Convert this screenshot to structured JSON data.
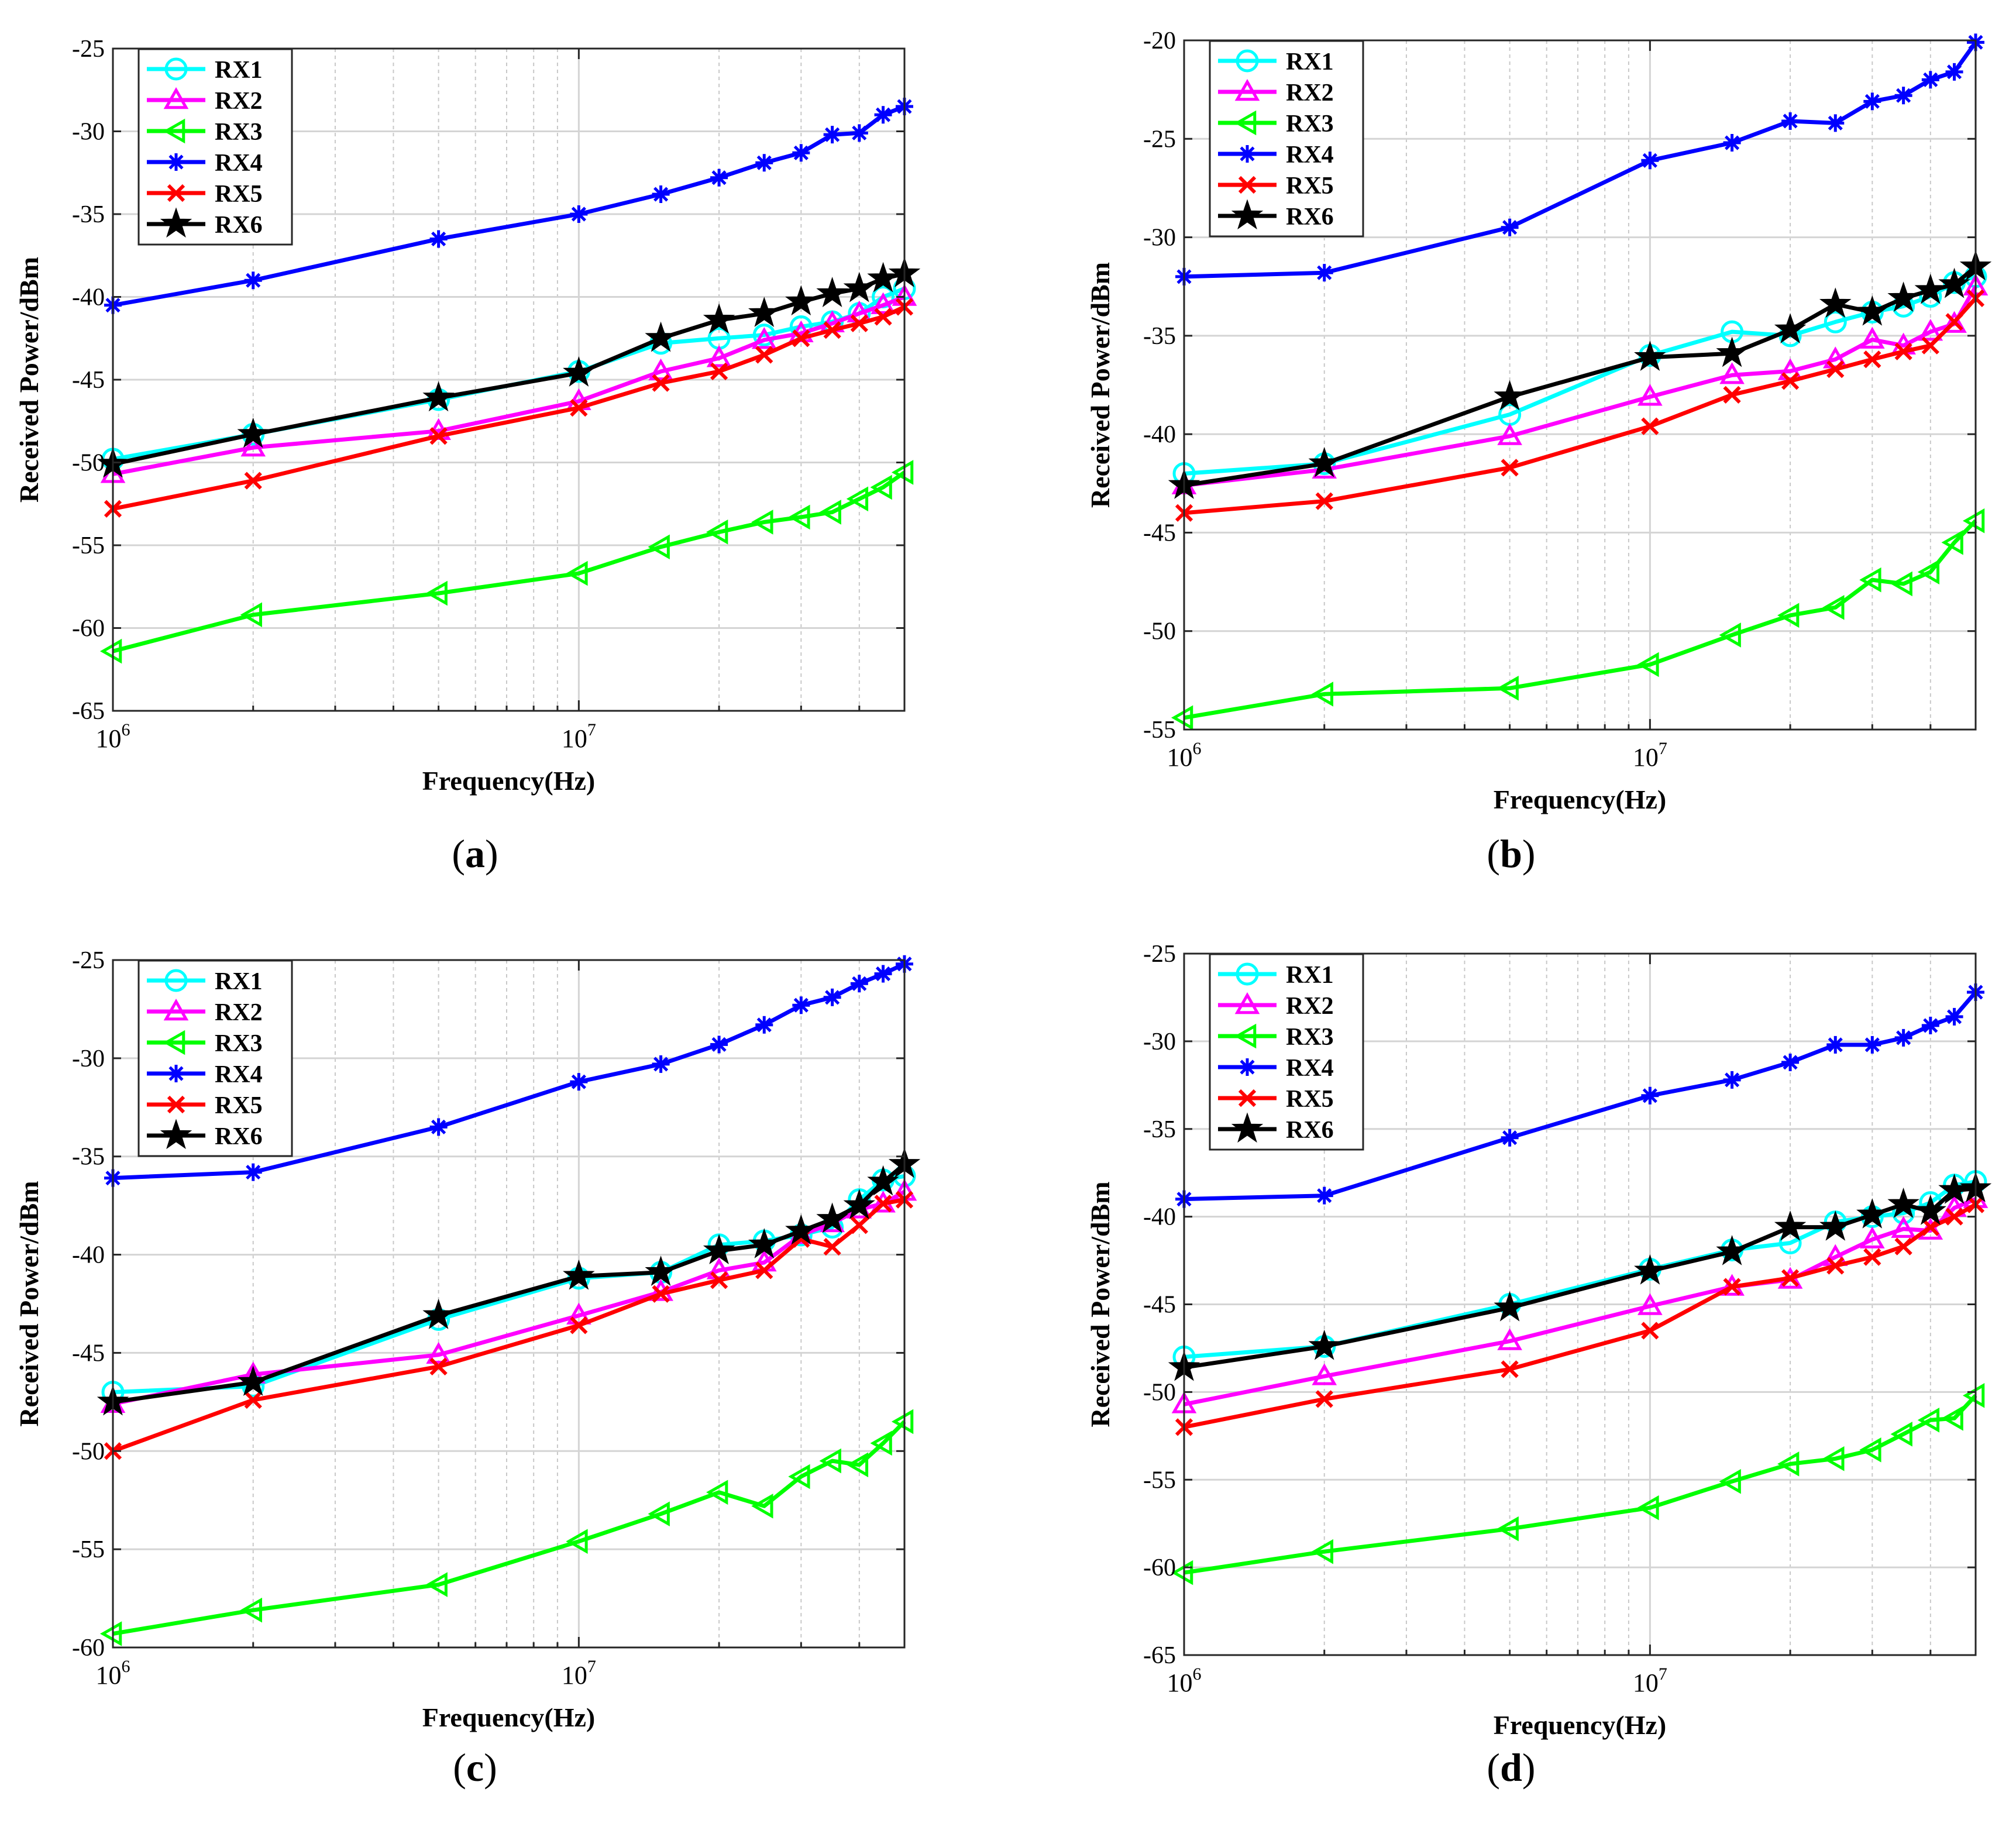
{
  "figure": {
    "panel_labels": [
      "a",
      "b",
      "c",
      "d"
    ]
  },
  "series_styles": {
    "RX1": {
      "color": "#00ffff",
      "marker": "circle"
    },
    "RX2": {
      "color": "#ff00ff",
      "marker": "triangle-up"
    },
    "RX3": {
      "color": "#00ff00",
      "marker": "triangle-left"
    },
    "RX4": {
      "color": "#0000ff",
      "marker": "asterisk"
    },
    "RX5": {
      "color": "#ff0000",
      "marker": "x"
    },
    "RX6": {
      "color": "#000000",
      "marker": "star"
    }
  },
  "chart_data": [
    {
      "type": "line",
      "panel": "a",
      "xscale": "log",
      "xlim": [
        1000000,
        50000000
      ],
      "ylim": [
        -65,
        -25
      ],
      "yticks": [
        -25,
        -30,
        -35,
        -40,
        -45,
        -50,
        -55,
        -60,
        -65
      ],
      "xticks": [
        {
          "value": 1000000,
          "base": "10",
          "exp": "6"
        },
        {
          "value": 10000000,
          "base": "10",
          "exp": "7"
        }
      ],
      "xlabel": "Frequency(Hz)",
      "ylabel": "Received Power/dBm",
      "legend_position": "top-left",
      "x": [
        1000000,
        2000000,
        5000000,
        10000000,
        15000000,
        20000000,
        25000000,
        30000000,
        35000000,
        40000000,
        45000000,
        50000000
      ],
      "series": [
        {
          "name": "RX1",
          "values": [
            -49.8,
            -48.3,
            -46.2,
            -44.5,
            -42.8,
            -42.5,
            -42.3,
            -41.8,
            -41.5,
            -41.0,
            -40.0,
            -39.5
          ]
        },
        {
          "name": "RX2",
          "values": [
            -50.7,
            -49.1,
            -48.1,
            -46.3,
            -44.5,
            -43.7,
            -42.6,
            -42.2,
            -41.6,
            -41.0,
            -40.5,
            -40.0
          ]
        },
        {
          "name": "RX3",
          "values": [
            -61.4,
            -59.2,
            -57.9,
            -56.7,
            -55.1,
            -54.2,
            -53.6,
            -53.3,
            -53.0,
            -52.2,
            -51.5,
            -50.6
          ]
        },
        {
          "name": "RX4",
          "values": [
            -40.5,
            -39.0,
            -36.5,
            -35.0,
            -33.8,
            -32.8,
            -31.9,
            -31.3,
            -30.2,
            -30.1,
            -29.0,
            -28.5
          ]
        },
        {
          "name": "RX5",
          "values": [
            -52.8,
            -51.1,
            -48.4,
            -46.7,
            -45.2,
            -44.5,
            -43.5,
            -42.5,
            -42.0,
            -41.6,
            -41.2,
            -40.6
          ]
        },
        {
          "name": "RX6",
          "values": [
            -50.1,
            -48.3,
            -46.1,
            -44.6,
            -42.5,
            -41.4,
            -41.0,
            -40.3,
            -39.8,
            -39.5,
            -38.9,
            -38.6
          ]
        }
      ]
    },
    {
      "type": "line",
      "panel": "b",
      "xscale": "log",
      "xlim": [
        1000000,
        50000000
      ],
      "ylim": [
        -55,
        -20
      ],
      "yticks": [
        -20,
        -25,
        -30,
        -35,
        -40,
        -45,
        -50,
        -55
      ],
      "xticks": [
        {
          "value": 1000000,
          "base": "10",
          "exp": "6"
        },
        {
          "value": 10000000,
          "base": "10",
          "exp": "7"
        }
      ],
      "xlabel": "Frequency(Hz)",
      "ylabel": "Received Power/dBm",
      "legend_position": "top-left",
      "x": [
        1000000,
        2000000,
        5000000,
        10000000,
        15000000,
        20000000,
        25000000,
        30000000,
        35000000,
        40000000,
        45000000,
        50000000
      ],
      "series": [
        {
          "name": "RX1",
          "values": [
            -42.0,
            -41.5,
            -39.0,
            -36.0,
            -34.8,
            -35.0,
            -34.3,
            -33.8,
            -33.5,
            -33.0,
            -32.3,
            -32.0
          ]
        },
        {
          "name": "RX2",
          "values": [
            -42.6,
            -41.8,
            -40.1,
            -38.1,
            -37.0,
            -36.8,
            -36.2,
            -35.2,
            -35.5,
            -34.8,
            -34.4,
            -32.5
          ]
        },
        {
          "name": "RX3",
          "values": [
            -54.4,
            -53.2,
            -52.9,
            -51.7,
            -50.2,
            -49.2,
            -48.8,
            -47.4,
            -47.6,
            -47.0,
            -45.5,
            -44.4
          ]
        },
        {
          "name": "RX4",
          "values": [
            -32.0,
            -31.8,
            -29.5,
            -26.1,
            -25.2,
            -24.1,
            -24.2,
            -23.1,
            -22.8,
            -22.0,
            -21.6,
            -20.1
          ]
        },
        {
          "name": "RX5",
          "values": [
            -44.0,
            -43.4,
            -41.7,
            -39.6,
            -38.0,
            -37.3,
            -36.7,
            -36.2,
            -35.8,
            -35.5,
            -34.3,
            -33.1
          ]
        },
        {
          "name": "RX6",
          "values": [
            -42.6,
            -41.5,
            -38.1,
            -36.1,
            -35.9,
            -34.7,
            -33.4,
            -33.8,
            -33.1,
            -32.7,
            -32.4,
            -31.5
          ]
        }
      ]
    },
    {
      "type": "line",
      "panel": "c",
      "xscale": "log",
      "xlim": [
        1000000,
        50000000
      ],
      "ylim": [
        -60,
        -25
      ],
      "yticks": [
        -25,
        -30,
        -35,
        -40,
        -45,
        -50,
        -55,
        -60
      ],
      "xticks": [
        {
          "value": 1000000,
          "base": "10",
          "exp": "6"
        },
        {
          "value": 10000000,
          "base": "10",
          "exp": "7"
        }
      ],
      "xlabel": "Frequency(Hz)",
      "ylabel": "Received Power/dBm",
      "legend_position": "top-left",
      "x": [
        1000000,
        2000000,
        5000000,
        10000000,
        15000000,
        20000000,
        25000000,
        30000000,
        35000000,
        40000000,
        45000000,
        50000000
      ],
      "series": [
        {
          "name": "RX1",
          "values": [
            -47.0,
            -46.7,
            -43.3,
            -41.2,
            -40.9,
            -39.5,
            -39.3,
            -39.0,
            -38.6,
            -37.2,
            -36.2,
            -36.0
          ]
        },
        {
          "name": "RX2",
          "values": [
            -47.6,
            -46.1,
            -45.1,
            -43.1,
            -41.9,
            -40.8,
            -40.4,
            -39.0,
            -38.4,
            -37.7,
            -37.4,
            -36.8
          ]
        },
        {
          "name": "RX3",
          "values": [
            -59.3,
            -58.1,
            -56.8,
            -54.6,
            -53.2,
            -52.1,
            -52.8,
            -51.3,
            -50.5,
            -50.7,
            -49.6,
            -48.5
          ]
        },
        {
          "name": "RX4",
          "values": [
            -36.1,
            -35.8,
            -33.5,
            -31.2,
            -30.3,
            -29.3,
            -28.3,
            -27.3,
            -26.9,
            -26.2,
            -25.7,
            -25.2
          ]
        },
        {
          "name": "RX5",
          "values": [
            -50.0,
            -47.4,
            -45.7,
            -43.6,
            -42.0,
            -41.3,
            -40.8,
            -39.2,
            -39.6,
            -38.5,
            -37.4,
            -37.2
          ]
        },
        {
          "name": "RX6",
          "values": [
            -47.5,
            -46.5,
            -43.1,
            -41.1,
            -40.9,
            -39.8,
            -39.5,
            -38.8,
            -38.2,
            -37.5,
            -36.3,
            -35.4
          ]
        }
      ]
    },
    {
      "type": "line",
      "panel": "d",
      "xscale": "log",
      "xlim": [
        1000000,
        50000000
      ],
      "ylim": [
        -65,
        -25
      ],
      "yticks": [
        -25,
        -30,
        -35,
        -40,
        -45,
        -50,
        -55,
        -60,
        -65
      ],
      "xticks": [
        {
          "value": 1000000,
          "base": "10",
          "exp": "6"
        },
        {
          "value": 10000000,
          "base": "10",
          "exp": "7"
        }
      ],
      "xlabel": "Frequency(Hz)",
      "ylabel": "Received Power/dBm",
      "legend_position": "top-left",
      "x": [
        1000000,
        2000000,
        5000000,
        10000000,
        15000000,
        20000000,
        25000000,
        30000000,
        35000000,
        40000000,
        45000000,
        50000000
      ],
      "series": [
        {
          "name": "RX1",
          "values": [
            -48.0,
            -47.4,
            -45.0,
            -43.0,
            -41.9,
            -41.5,
            -40.3,
            -40.0,
            -39.8,
            -39.2,
            -38.2,
            -38.0
          ]
        },
        {
          "name": "RX2",
          "values": [
            -50.7,
            -49.1,
            -47.1,
            -45.1,
            -44.0,
            -43.6,
            -42.3,
            -41.3,
            -40.7,
            -40.8,
            -39.5,
            -39.0
          ]
        },
        {
          "name": "RX3",
          "values": [
            -60.3,
            -59.1,
            -57.8,
            -56.6,
            -55.1,
            -54.1,
            -53.8,
            -53.3,
            -52.4,
            -51.6,
            -51.5,
            -50.2
          ]
        },
        {
          "name": "RX4",
          "values": [
            -39.0,
            -38.8,
            -35.5,
            -33.1,
            -32.2,
            -31.2,
            -30.2,
            -30.2,
            -29.8,
            -29.1,
            -28.6,
            -27.2
          ]
        },
        {
          "name": "RX5",
          "values": [
            -52.0,
            -50.4,
            -48.7,
            -46.5,
            -44.0,
            -43.5,
            -42.8,
            -42.3,
            -41.7,
            -40.6,
            -40.0,
            -39.3
          ]
        },
        {
          "name": "RX6",
          "values": [
            -48.6,
            -47.4,
            -45.2,
            -43.1,
            -42.0,
            -40.6,
            -40.6,
            -39.9,
            -39.3,
            -39.7,
            -38.5,
            -38.4
          ]
        }
      ]
    }
  ]
}
